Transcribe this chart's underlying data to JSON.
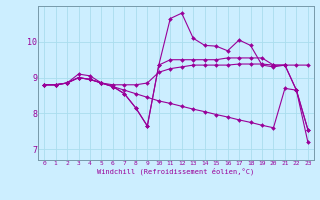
{
  "xlabel": "Windchill (Refroidissement éolien,°C)",
  "x_ticks": [
    0,
    1,
    2,
    3,
    4,
    5,
    6,
    7,
    8,
    9,
    10,
    11,
    12,
    13,
    14,
    15,
    16,
    17,
    18,
    19,
    20,
    21,
    22,
    23
  ],
  "ylim": [
    6.7,
    11.0
  ],
  "yticks": [
    7,
    8,
    9,
    10
  ],
  "bg_color": "#cceeff",
  "grid_color": "#aaddee",
  "line_color": "#990099",
  "series": [
    [
      8.8,
      8.8,
      8.85,
      9.1,
      9.05,
      8.85,
      8.8,
      8.8,
      8.8,
      8.85,
      9.15,
      9.25,
      9.3,
      9.35,
      9.35,
      9.35,
      9.35,
      9.38,
      9.38,
      9.38,
      9.35,
      9.35,
      9.35,
      9.35
    ],
    [
      8.8,
      8.8,
      8.85,
      9.0,
      8.95,
      8.85,
      8.75,
      8.65,
      8.55,
      8.45,
      8.35,
      8.28,
      8.2,
      8.12,
      8.05,
      7.97,
      7.9,
      7.82,
      7.75,
      7.67,
      7.6,
      8.7,
      8.65,
      7.2
    ],
    [
      8.8,
      8.8,
      8.85,
      9.0,
      8.95,
      8.85,
      8.75,
      8.55,
      8.15,
      7.65,
      9.35,
      10.65,
      10.8,
      10.1,
      9.9,
      9.88,
      9.75,
      10.05,
      9.9,
      9.35,
      9.3,
      9.35,
      8.65,
      7.55
    ],
    [
      8.8,
      8.8,
      8.85,
      9.0,
      8.95,
      8.85,
      8.75,
      8.55,
      8.15,
      7.65,
      9.35,
      9.5,
      9.5,
      9.5,
      9.5,
      9.5,
      9.55,
      9.55,
      9.55,
      9.55,
      9.35,
      9.35,
      8.65,
      7.55
    ]
  ]
}
